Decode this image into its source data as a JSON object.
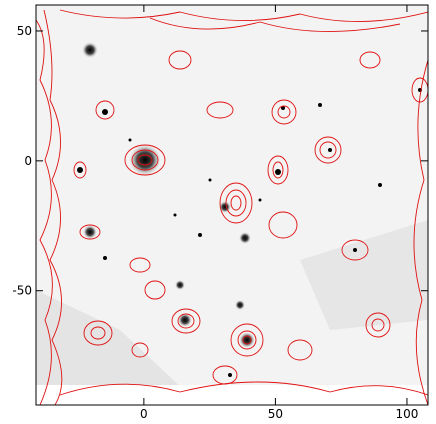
{
  "chart_data": {
    "type": "image",
    "xlim": [
      -41,
      108
    ],
    "ylim": [
      -94,
      60
    ],
    "xticks": [
      0,
      50,
      100
    ],
    "yticks": [
      -50,
      0,
      50
    ]
  }
}
